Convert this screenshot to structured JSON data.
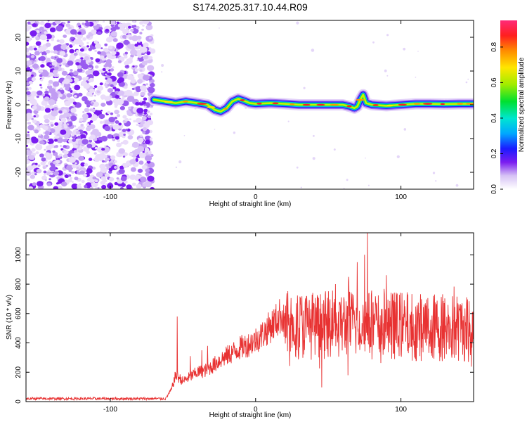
{
  "chart_data": [
    {
      "id": "spectrogram",
      "type": "heatmap",
      "title": "S174.2025.317.10.44.R09",
      "xlabel": "Height of straight line (km)",
      "ylabel": "Frequency (Hz)",
      "xlim": [
        -158,
        150
      ],
      "ylim": [
        -25,
        25
      ],
      "xticks": [
        -100,
        0,
        100
      ],
      "yticks": [
        -20,
        -10,
        0,
        10,
        20
      ],
      "colorbar": {
        "label": "Normalized spectral amplitude",
        "range": [
          0,
          0.95
        ],
        "ticks": [
          0.0,
          0.2,
          0.4,
          0.6,
          0.8
        ]
      },
      "noise_region_x": [
        -158,
        -70
      ],
      "ridge": {
        "x": [
          -70,
          -62,
          -55,
          -48,
          -40,
          -33,
          -28,
          -24,
          -20,
          -16,
          -12,
          -8,
          -4,
          0,
          10,
          20,
          30,
          40,
          50,
          60,
          65,
          68,
          70,
          72,
          74,
          76,
          80,
          90,
          100,
          110,
          120,
          130,
          140,
          150
        ],
        "y": [
          1.5,
          1.0,
          0.5,
          1.0,
          0.5,
          0.0,
          -1.5,
          -2.0,
          -1.0,
          1.0,
          1.8,
          1.2,
          0.5,
          0.3,
          0.5,
          0.3,
          0.0,
          0.0,
          0.0,
          0.0,
          -0.5,
          -1.0,
          -0.5,
          1.5,
          3.0,
          0.5,
          0.0,
          -0.3,
          0.0,
          0.3,
          0.3,
          0.2,
          0.3,
          0.3
        ]
      }
    },
    {
      "id": "snr",
      "type": "line",
      "xlabel": "Height of straight line (km)",
      "ylabel": "SNR (10 * v/v)",
      "xlim": [
        -158,
        150
      ],
      "ylim": [
        0,
        1150
      ],
      "xticks": [
        -100,
        0,
        100
      ],
      "yticks": [
        0,
        200,
        400,
        600,
        800,
        1000
      ],
      "color": "#e83232",
      "envelope": {
        "x": [
          -158,
          -100,
          -62,
          -58,
          -55,
          -50,
          -45,
          -40,
          -35,
          -30,
          -25,
          -20,
          -15,
          -10,
          -5,
          0,
          5,
          10,
          15,
          18,
          20,
          30,
          40,
          50,
          60,
          70,
          80,
          90,
          100,
          110,
          120,
          130,
          140,
          150
        ],
        "y": [
          20,
          20,
          20,
          80,
          180,
          140,
          170,
          200,
          210,
          240,
          280,
          310,
          340,
          370,
          390,
          420,
          460,
          510,
          560,
          600,
          520,
          520,
          520,
          520,
          530,
          530,
          520,
          520,
          520,
          510,
          510,
          500,
          500,
          510
        ]
      },
      "peaks": [
        {
          "x": -54,
          "y": 580
        },
        {
          "x": -45,
          "y": 310
        },
        {
          "x": -37,
          "y": 350
        },
        {
          "x": -33,
          "y": 380
        },
        {
          "x": 55,
          "y": 800
        },
        {
          "x": 64,
          "y": 850
        },
        {
          "x": 70,
          "y": 950
        },
        {
          "x": 75,
          "y": 1000
        },
        {
          "x": 77,
          "y": 1150
        }
      ]
    }
  ]
}
